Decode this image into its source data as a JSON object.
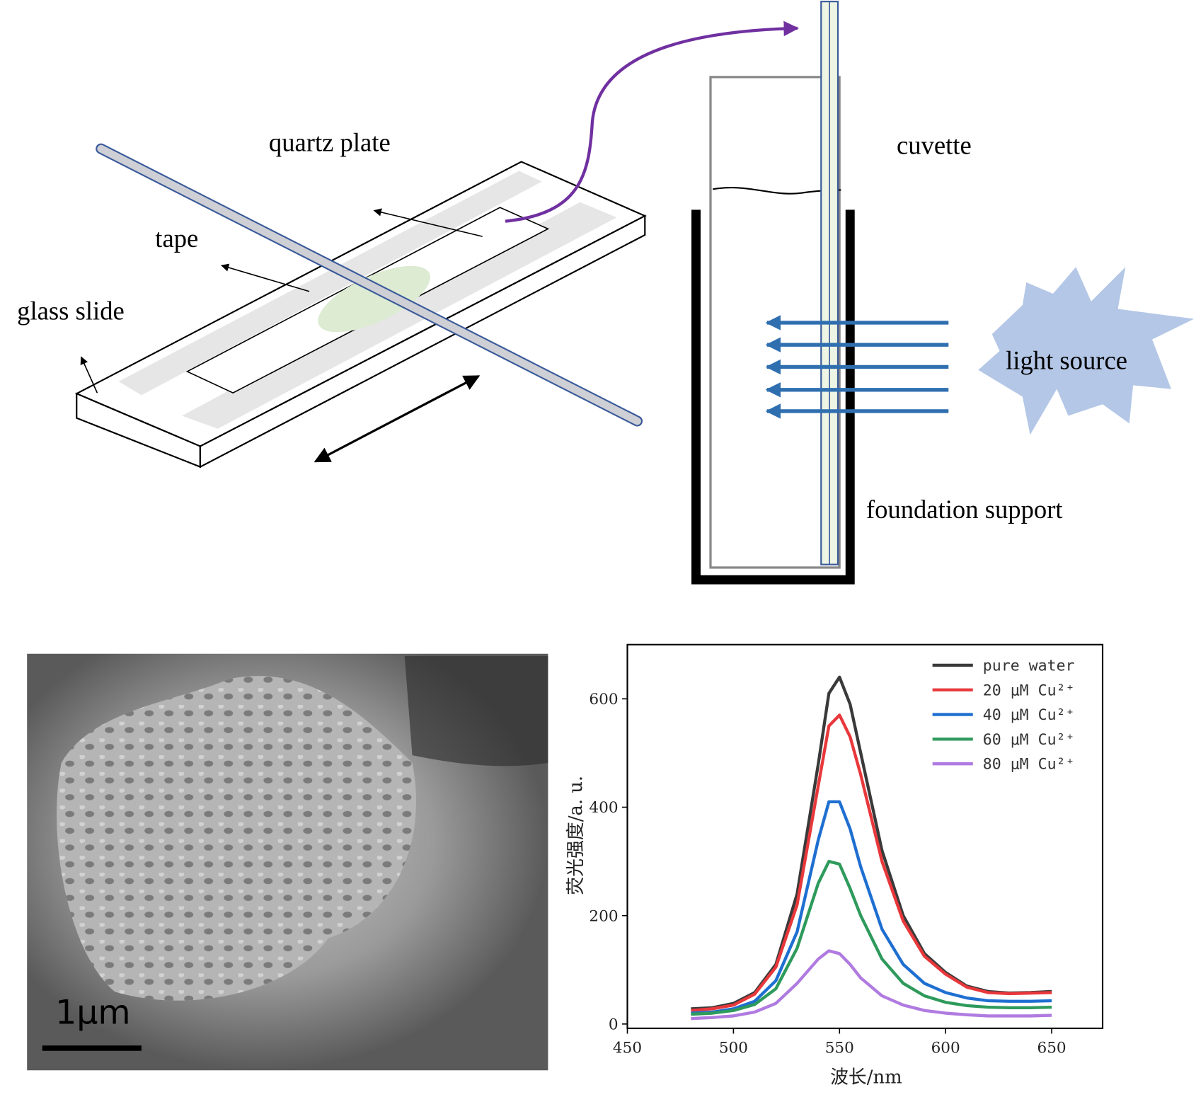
{
  "diagram": {
    "labels": [
      "quartz plate",
      "tape",
      "glass slide",
      "cuvette",
      "light source",
      "foundation support"
    ]
  },
  "image": {
    "scale_bar": "1μm"
  },
  "chart_data": {
    "type": "line",
    "x_label": "波长/nm",
    "y_label": "荧光强度/a. u.",
    "x": [
      480,
      490,
      500,
      510,
      520,
      530,
      540,
      545,
      550,
      555,
      560,
      570,
      580,
      590,
      600,
      610,
      620,
      630,
      640,
      650
    ],
    "series": [
      {
        "name": "pure water",
        "color": "#3a3a3a",
        "values": [
          28,
          30,
          38,
          58,
          110,
          240,
          480,
          610,
          640,
          590,
          500,
          320,
          200,
          130,
          95,
          70,
          60,
          57,
          58,
          60
        ]
      },
      {
        "name": "20 μM Cu²⁺",
        "color": "#e8383b",
        "values": [
          25,
          28,
          35,
          55,
          105,
          220,
          440,
          550,
          570,
          530,
          460,
          300,
          190,
          125,
          92,
          68,
          58,
          56,
          57,
          58
        ]
      },
      {
        "name": "40 μM Cu²⁺",
        "color": "#1f6fd1",
        "values": [
          20,
          22,
          28,
          42,
          80,
          170,
          340,
          410,
          410,
          360,
          290,
          175,
          110,
          75,
          58,
          48,
          43,
          42,
          42,
          43
        ]
      },
      {
        "name": "60 μM Cu²⁺",
        "color": "#2e9a5c",
        "values": [
          18,
          20,
          25,
          36,
          65,
          140,
          260,
          300,
          295,
          250,
          200,
          120,
          75,
          52,
          40,
          34,
          31,
          30,
          30,
          31
        ]
      },
      {
        "name": "80 μM Cu²⁺",
        "color": "#b07be0",
        "values": [
          10,
          12,
          15,
          22,
          38,
          75,
          120,
          135,
          130,
          110,
          85,
          52,
          35,
          25,
          20,
          17,
          15,
          15,
          15,
          16
        ]
      }
    ],
    "xlim": [
      450,
      674
    ],
    "ylim": [
      -8,
      700
    ],
    "xticks": [
      450,
      500,
      550,
      600,
      650
    ],
    "yticks": [
      0,
      200,
      400,
      600
    ],
    "legend": "upper right",
    "grid": false
  }
}
